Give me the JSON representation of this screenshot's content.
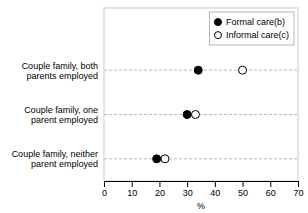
{
  "chart_data": {
    "type": "dot",
    "orientation": "horizontal",
    "categories": [
      "Couple family, both\nparents employed",
      "Couple family, one\nparent employed",
      "Couple family, neither\nparent employed"
    ],
    "series": [
      {
        "name": "Formal care(b)",
        "color": "#000000",
        "values": [
          34,
          30,
          19
        ]
      },
      {
        "name": "Informal care(c)",
        "color": "#ffffff",
        "values": [
          50,
          33,
          22
        ]
      }
    ],
    "xlabel": "%",
    "xlim": [
      0,
      70
    ],
    "xticks": [
      0,
      10,
      20,
      30,
      40,
      50,
      60,
      70
    ],
    "grid": "y",
    "legend": "upper right"
  }
}
